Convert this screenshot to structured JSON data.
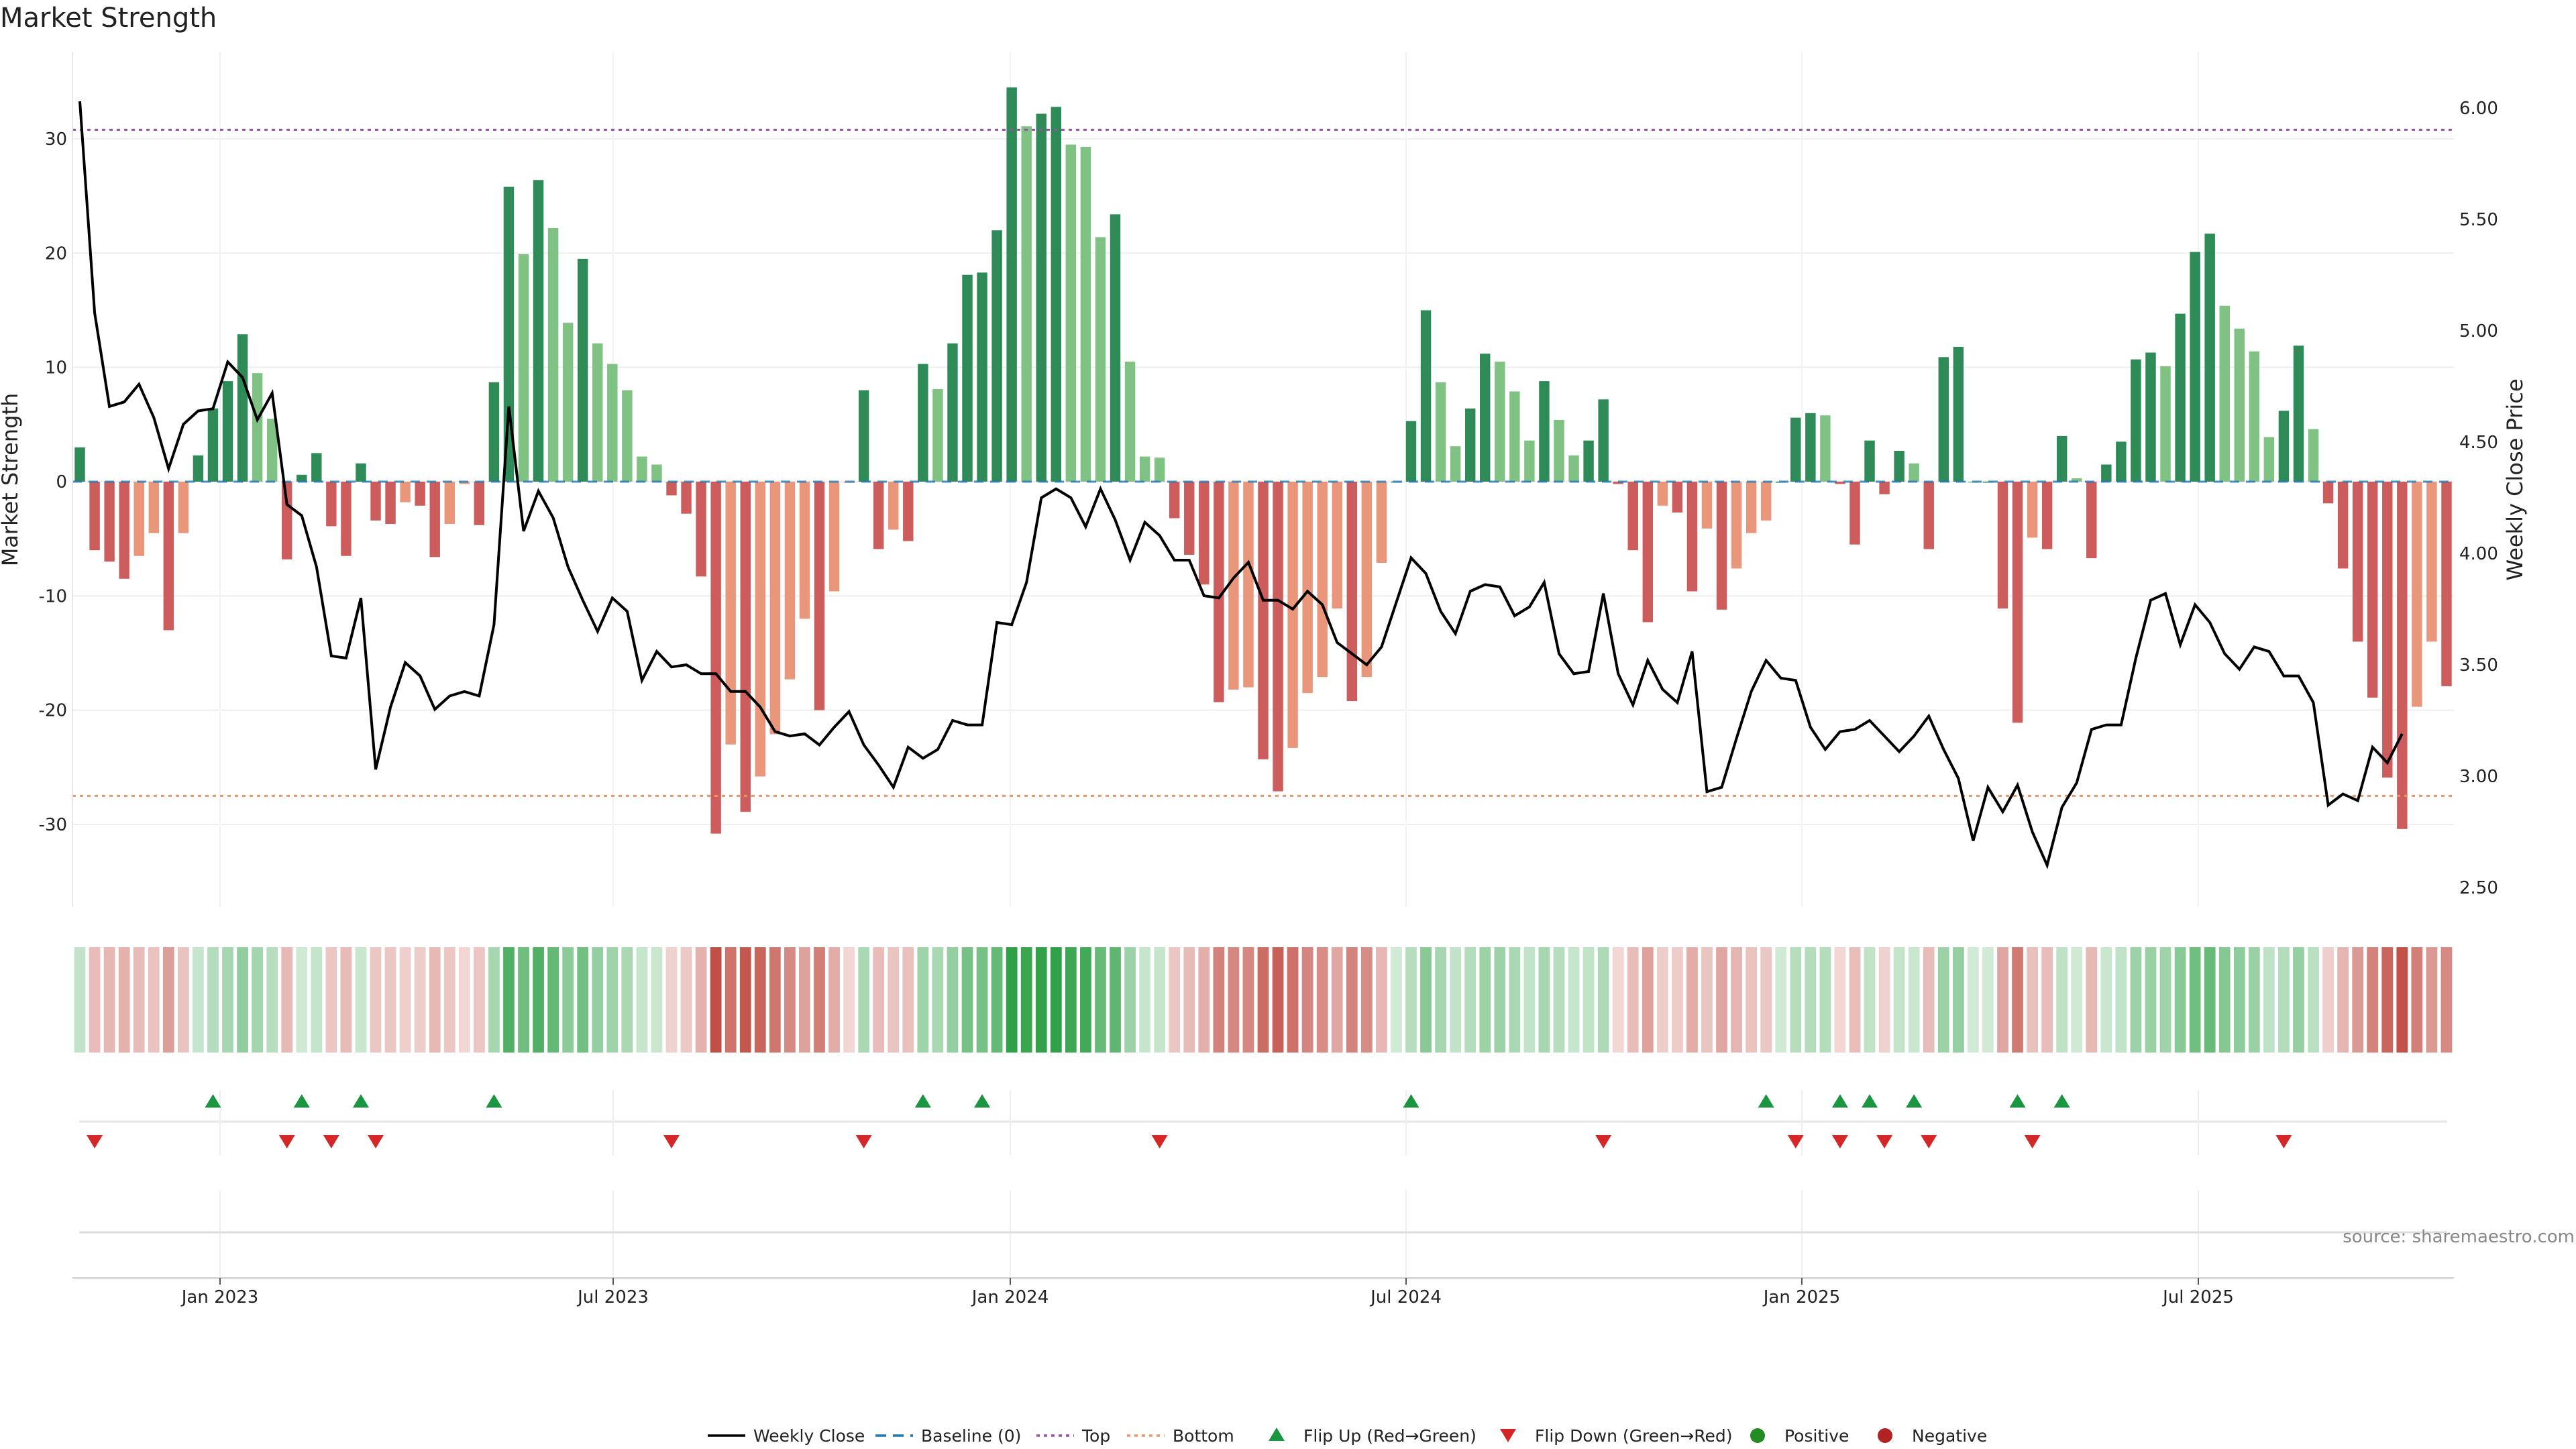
{
  "chart_data": {
    "type": "bar",
    "title": "Market Strength",
    "ylabel_left": "Market Strength",
    "ylabel_right": "Weekly Close Price",
    "y_left_range": [
      -37,
      36.8
    ],
    "y_left_ticks": [
      30,
      20,
      10,
      0,
      -10,
      -20,
      -30
    ],
    "y_right_range": [
      2.44,
      6.21
    ],
    "y_right_ticks": [
      "6.00",
      "5.50",
      "5.00",
      "4.50",
      "4.00",
      "3.50",
      "3.00",
      "2.50"
    ],
    "x_ticks": [
      "Jan 2023",
      "Jul 2023",
      "Jan 2024",
      "Jul 2024",
      "Jan 2025",
      "Jul 2025"
    ],
    "top_line": 30.8,
    "bottom_line": -27.5,
    "baseline": 0,
    "grid": true,
    "bar_colors": {
      "positive_rising": "#2e8b57",
      "positive_falling": "#7fc283",
      "negative_falling": "#cd5c5c",
      "negative_rising": "#e9967a"
    },
    "strength": [
      3,
      -6,
      -7,
      -8.5,
      -6.5,
      -4.5,
      -13,
      -4.5,
      2.3,
      6.4,
      8.8,
      12.9,
      9.5,
      5.5,
      -6.8,
      0.6,
      2.5,
      -3.9,
      -6.5,
      1.6,
      -3.4,
      -3.7,
      -1.8,
      -2.1,
      -6.6,
      -3.7,
      -0.2,
      -3.8,
      8.7,
      25.8,
      19.9,
      26.4,
      22.2,
      13.9,
      19.5,
      12.1,
      10.3,
      8,
      2.2,
      1.5,
      -1.2,
      -2.8,
      -8.3,
      -30.8,
      -23,
      -28.9,
      -25.8,
      -22.1,
      -17.3,
      -12,
      -20,
      -9.6,
      -0.1,
      8,
      -5.9,
      -4.2,
      -5.2,
      10.3,
      8.1,
      12.1,
      18.1,
      18.3,
      22,
      34.5,
      31.1,
      32.2,
      32.8,
      29.5,
      29.3,
      21.4,
      23.4,
      10.5,
      2.2,
      2.1,
      -3.2,
      -6.4,
      -9,
      -19.3,
      -18.2,
      -18,
      -24.3,
      -27.1,
      -23.3,
      -18.5,
      -17.1,
      -11.1,
      -19.2,
      -17.1,
      -7.1,
      0,
      5.3,
      15,
      8.7,
      3.1,
      6.4,
      11.2,
      10.5,
      7.9,
      3.6,
      8.8,
      5.4,
      2.3,
      3.6,
      7.2,
      -0.2,
      -6,
      -12.3,
      -2.1,
      -2.7,
      -9.6,
      -4.1,
      -11.2,
      -7.6,
      -4.5,
      -3.4,
      0,
      5.6,
      6,
      5.8,
      -0.2,
      -5.5,
      3.6,
      -1.1,
      2.7,
      1.6,
      -5.9,
      10.9,
      11.8,
      0,
      0,
      -11.1,
      -21.1,
      -4.9,
      -5.9,
      4,
      0.3,
      -6.7,
      1.5,
      3.5,
      10.7,
      11.3,
      10.1,
      14.7,
      20.1,
      21.7,
      15.4,
      13.4,
      11.4,
      3.9,
      6.2,
      11.9,
      4.6,
      -1.9,
      -7.6,
      -14,
      -18.9,
      -25.9,
      -30.4,
      -19.7,
      -14,
      -17.9
    ],
    "close": [
      6.03,
      5.08,
      4.66,
      4.68,
      4.76,
      4.61,
      4.38,
      4.58,
      4.64,
      4.65,
      4.86,
      4.79,
      4.6,
      4.72,
      4.22,
      4.17,
      3.94,
      3.54,
      3.53,
      3.8,
      3.03,
      3.31,
      3.51,
      3.45,
      3.3,
      3.36,
      3.38,
      3.36,
      3.68,
      4.66,
      4.1,
      4.28,
      4.16,
      3.94,
      3.79,
      3.65,
      3.8,
      3.74,
      3.43,
      3.56,
      3.49,
      3.5,
      3.46,
      3.46,
      3.38,
      3.38,
      3.31,
      3.2,
      3.18,
      3.19,
      3.14,
      3.22,
      3.29,
      3.14,
      3.05,
      2.95,
      3.13,
      3.08,
      3.12,
      3.25,
      3.23,
      3.23,
      3.69,
      3.68,
      3.87,
      4.25,
      4.29,
      4.25,
      4.12,
      4.29,
      4.15,
      3.97,
      4.14,
      4.08,
      3.97,
      3.97,
      3.81,
      3.8,
      3.89,
      3.96,
      3.79,
      3.79,
      3.75,
      3.83,
      3.77,
      3.6,
      3.55,
      3.5,
      3.58,
      3.78,
      3.98,
      3.91,
      3.74,
      3.64,
      3.83,
      3.86,
      3.85,
      3.72,
      3.76,
      3.87,
      3.55,
      3.46,
      3.47,
      3.82,
      3.46,
      3.32,
      3.52,
      3.39,
      3.33,
      3.56,
      2.93,
      2.95,
      3.17,
      3.38,
      3.52,
      3.44,
      3.43,
      3.22,
      3.12,
      3.2,
      3.21,
      3.25,
      3.18,
      3.11,
      3.18,
      3.27,
      3.12,
      2.99,
      2.71,
      2.95,
      2.84,
      2.96,
      2.75,
      2.6,
      2.86,
      2.97,
      3.21,
      3.23,
      3.23,
      3.53,
      3.79,
      3.82,
      3.59,
      3.77,
      3.69,
      3.55,
      3.48,
      3.58,
      3.56,
      3.45,
      3.45,
      3.33,
      2.87,
      2.92,
      2.89,
      3.13,
      3.06,
      3.19
    ],
    "flip_up": [
      9,
      15,
      19,
      28,
      57,
      61,
      90,
      114,
      119,
      121,
      124,
      131,
      134
    ],
    "flip_down": [
      1,
      14,
      17,
      20,
      40,
      53,
      73,
      103,
      116,
      119,
      122,
      125,
      132,
      149
    ]
  },
  "source": "source: sharemaestro.com",
  "legend": [
    {
      "label": "Weekly Close",
      "kind": "line-solid",
      "color": "#000000"
    },
    {
      "label": "Baseline (0)",
      "kind": "line-dash",
      "color": "#1f77b4"
    },
    {
      "label": "Top",
      "kind": "line-dot",
      "color": "#9a4fa8"
    },
    {
      "label": "Bottom",
      "kind": "line-dot",
      "color": "#e8986a"
    },
    {
      "label": "Flip Up (Red→Green)",
      "kind": "triangle-up",
      "color": "#1a9641"
    },
    {
      "label": "Flip Down (Green→Red)",
      "kind": "triangle-down",
      "color": "#d62728"
    },
    {
      "label": "Positive",
      "kind": "dot",
      "color": "#228b22"
    },
    {
      "label": "Negative",
      "kind": "dot",
      "color": "#b22222"
    }
  ]
}
